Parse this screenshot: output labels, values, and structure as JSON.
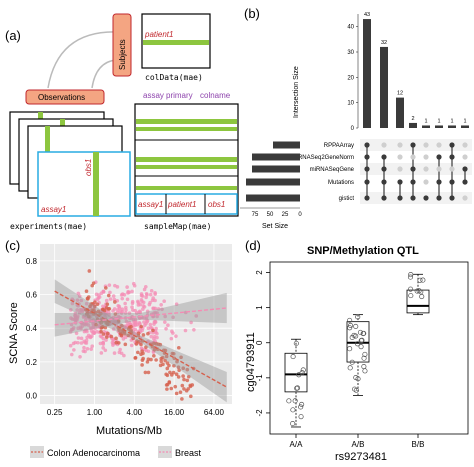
{
  "panel_a": {
    "letter": "(a)",
    "subjects": "Subjects",
    "observations": "Observations",
    "patient1": "patient1",
    "coldata": "colData(mae)",
    "obs1": "obs1",
    "assay1": "assay1",
    "experiments": "experiments(mae)",
    "header_assay": "assay",
    "header_primary": "primary",
    "header_colname": "colname",
    "sm_assay1": "assay1",
    "sm_patient1": "patient1",
    "sm_obs1": "obs1",
    "samplemap": "sampleMap(mae)",
    "colors": {
      "green": "#8dc63f",
      "red": "#c1272d",
      "purple": "#8e44ad",
      "salmon": "#f4a582",
      "cyan": "#29abe2"
    }
  },
  "panel_b": {
    "letter": "(b)",
    "ylabel": "Intersection Size",
    "setsize_label": "Set Size",
    "sets": [
      "RPPAArray",
      "RNASeq2GeneNorm",
      "miRNASeqGene",
      "Mutations",
      "gistict"
    ],
    "setsize_ticks": [
      "75",
      "50",
      "25",
      "0"
    ],
    "yticks": [
      "0",
      "10",
      "20",
      "30",
      "40"
    ],
    "chart_data": {
      "type": "bar",
      "title": "",
      "xlabel": "",
      "ylabel": "Intersection Size",
      "ylim": [
        0,
        45
      ],
      "values": [
        43,
        32,
        12,
        2,
        1,
        1,
        1,
        1
      ],
      "labels": [
        "43",
        "32",
        "12",
        "2",
        "1",
        "1",
        "1",
        "1"
      ],
      "set_sizes": [
        {
          "name": "RPPAArray",
          "value": 45
        },
        {
          "name": "RNASeq2GeneNorm",
          "value": 80
        },
        {
          "name": "miRNASeqGene",
          "value": 80
        },
        {
          "name": "Mutations",
          "value": 90
        },
        {
          "name": "gistict",
          "value": 90
        }
      ]
    }
  },
  "panel_c": {
    "letter": "(c)",
    "ylabel": "SCNA Score",
    "xlabel": "Mutations/Mb",
    "xticks": [
      "0.25",
      "1.00",
      "4.00",
      "16.00",
      "64.00"
    ],
    "yticks": [
      "0.0",
      "0.2",
      "0.4",
      "0.6",
      "0.8"
    ],
    "legend": [
      "Colon Adenocarcinoma",
      "Breast"
    ],
    "chart_data": {
      "type": "scatter",
      "xlabel": "Mutations/Mb",
      "ylabel": "SCNA Score",
      "xscale": "log2",
      "xlim": [
        0.15,
        120
      ],
      "ylim": [
        -0.05,
        0.9
      ],
      "series": [
        {
          "name": "Colon Adenocarcinoma",
          "color": "#d6604d",
          "fit": [
            [
              0.25,
              0.62
            ],
            [
              100,
              0.05
            ]
          ]
        },
        {
          "name": "Breast",
          "color": "#f48cb4",
          "fit": [
            [
              0.25,
              0.42
            ],
            [
              100,
              0.52
            ]
          ]
        }
      ]
    }
  },
  "panel_d": {
    "letter": "(d)",
    "title": "SNP/Methylation QTL",
    "ylabel": "cg04793911",
    "xlabel": "rs9273481",
    "yticks": [
      "2",
      "1",
      "0",
      "-1",
      "-2"
    ],
    "chart_data": {
      "type": "box",
      "title": "SNP/Methylation QTL",
      "xlabel": "rs9273481",
      "ylabel": "cg04793911",
      "ylim": [
        -2.6,
        2.3
      ],
      "categories": [
        "A/A",
        "A/B",
        "B/B"
      ],
      "boxes": [
        {
          "name": "A/A",
          "min": -2.4,
          "q1": -1.4,
          "median": -0.9,
          "q3": -0.3,
          "max": 0.1
        },
        {
          "name": "A/B",
          "min": -1.5,
          "q1": -0.55,
          "median": 0.0,
          "q3": 0.6,
          "max": 0.8
        },
        {
          "name": "B/B",
          "min": 0.8,
          "q1": 0.85,
          "median": 1.05,
          "q3": 1.5,
          "max": 1.95
        }
      ]
    }
  }
}
